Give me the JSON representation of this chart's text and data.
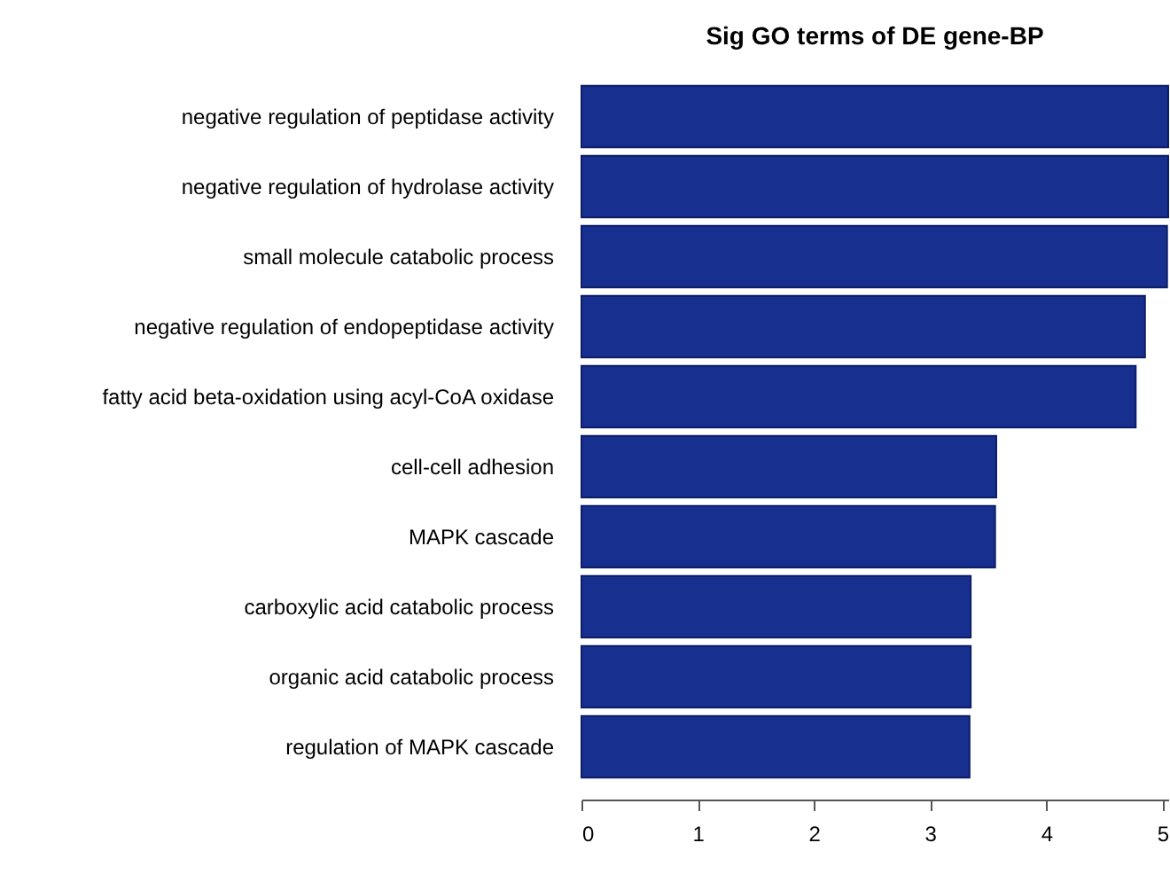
{
  "chart_data": {
    "type": "bar",
    "orientation": "horizontal",
    "title": "Sig GO terms of DE gene-BP",
    "categories": [
      "negative regulation of peptidase activity",
      "negative regulation of hydrolase activity",
      "small molecule catabolic process",
      "negative regulation of endopeptidase activity",
      "fatty acid beta-oxidation using acyl-CoA oxidase",
      "cell-cell adhesion",
      "MAPK cascade",
      "carboxylic acid catabolic process",
      "organic acid catabolic process",
      "regulation of MAPK cascade"
    ],
    "values": [
      5.05,
      5.05,
      5.04,
      4.85,
      4.77,
      3.57,
      3.56,
      3.35,
      3.35,
      3.34
    ],
    "color": "#17308f",
    "xlim": [
      0,
      5.05
    ],
    "xticks": [
      0,
      1,
      2,
      3,
      4,
      5
    ],
    "grid": false
  }
}
